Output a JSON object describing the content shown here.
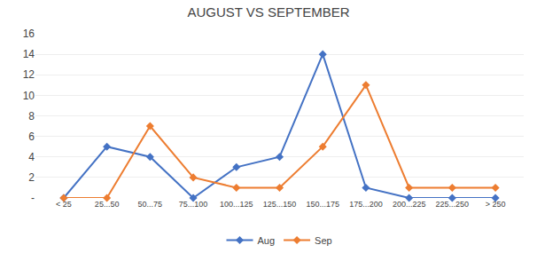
{
  "chart_data": {
    "type": "line",
    "title": "AUGUST VS SEPTEMBER",
    "categories": [
      "< 25",
      "25...50",
      "50...75",
      "75...100",
      "100...125",
      "125...150",
      "150...175",
      "175...200",
      "200...225",
      "225...250",
      "> 250"
    ],
    "series": [
      {
        "name": "Aug",
        "color": "#4472C4",
        "values": [
          0,
          5,
          4,
          0,
          3,
          4,
          14,
          1,
          0,
          0,
          0
        ]
      },
      {
        "name": "Sep",
        "color": "#ED7D31",
        "values": [
          0,
          0,
          7,
          2,
          1,
          1,
          5,
          11,
          1,
          1,
          1
        ]
      }
    ],
    "ylim": [
      0,
      16
    ],
    "yticks": [
      {
        "value": 0,
        "label": "-"
      },
      2,
      4,
      6,
      8,
      10,
      12,
      14,
      16
    ],
    "grid": true,
    "legend": "bottom",
    "marker": "diamond",
    "line_style": "solid"
  }
}
